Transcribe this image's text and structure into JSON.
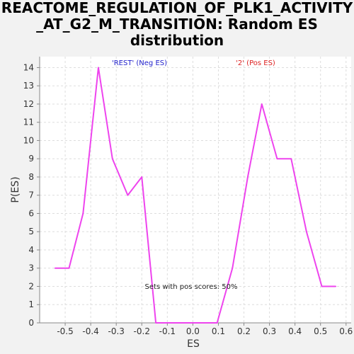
{
  "title_lines": [
    "REACTOME_REGULATION_OF_PLK1_ACTIVITY",
    "_AT_G2_M_TRANSITION: Random ES",
    "distribution"
  ],
  "chart_data": {
    "type": "line",
    "title": "REACTOME_REGULATION_OF_PLK1_ACTIVITY_AT_G2_M_TRANSITION: Random ES distribution",
    "xlabel": "ES",
    "ylabel": "P(ES)",
    "xlim": [
      -0.6,
      0.62
    ],
    "ylim": [
      0,
      14.6
    ],
    "xticks": [
      -0.5,
      -0.4,
      -0.3,
      -0.2,
      -0.1,
      0.0,
      0.1,
      0.2,
      0.3,
      0.4,
      0.5,
      0.6
    ],
    "xtick_labels": [
      "-0.5",
      "-0.4",
      "-0.3",
      "-0.2",
      "-0.1",
      "0.0",
      "0.1",
      "0.2",
      "0.3",
      "0.4",
      "0.5",
      "0.6"
    ],
    "yticks": [
      0,
      1,
      2,
      3,
      4,
      5,
      6,
      7,
      8,
      9,
      10,
      11,
      12,
      13,
      14
    ],
    "ytick_labels": [
      "0",
      "1",
      "2",
      "3",
      "4",
      "5",
      "6",
      "7",
      "8",
      "9",
      "10",
      "11",
      "12",
      "13",
      "14"
    ],
    "grid": true,
    "series": [
      {
        "color": "#ee44ee",
        "x": [
          -0.54,
          -0.485,
          -0.43,
          -0.37,
          -0.315,
          -0.255,
          -0.2,
          -0.145,
          -0.09,
          -0.03,
          0.03,
          0.095,
          0.155,
          0.215,
          0.27,
          0.33,
          0.385,
          0.445,
          0.505,
          0.56
        ],
        "y": [
          3,
          3,
          6,
          14,
          9,
          7,
          8,
          0,
          0,
          0,
          0,
          0,
          3,
          8,
          12,
          9,
          9,
          5,
          2,
          2
        ]
      }
    ],
    "legend": [
      {
        "text": "'REST' (Neg ES)",
        "color": "#2222cc"
      },
      {
        "text": "'2' (Pos ES)",
        "color": "#dd2222"
      }
    ],
    "annotation": "Sets with pos scores: 50%"
  }
}
